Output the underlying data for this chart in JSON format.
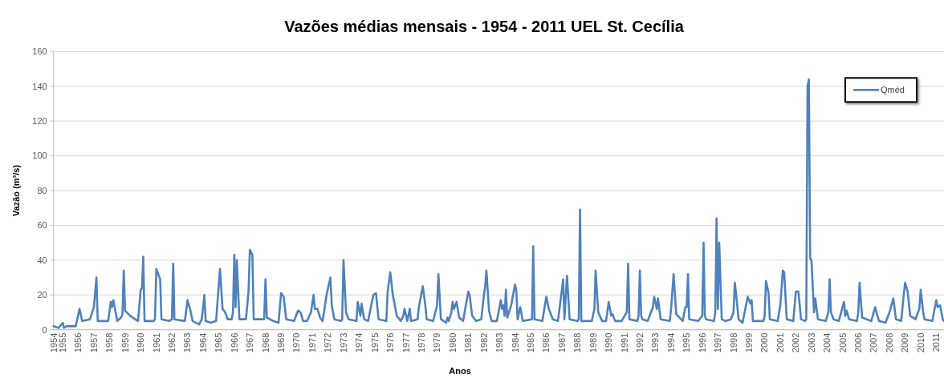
{
  "chart_data": {
    "type": "line",
    "title": "Vazões médias mensais - 1954 - 2011 UEL St. Cecília",
    "xlabel": "Anos",
    "ylabel": "Vazão (m³/s)",
    "x": [
      "1954-06",
      "1954-10",
      "1955-01",
      "1955-02",
      "1955-04",
      "1955-11",
      "1956-02",
      "1956-04",
      "1956-10",
      "1957-01",
      "1957-03",
      "1957-04",
      "1957-12",
      "1958-02",
      "1958-03",
      "1958-04",
      "1958-07",
      "1958-10",
      "1958-11",
      "1958-12",
      "1959-01",
      "1959-05",
      "1959-11",
      "1960-01",
      "1960-02",
      "1960-03",
      "1960-04",
      "1960-11",
      "1960-12",
      "1961-01",
      "1961-04",
      "1961-05",
      "1961-11",
      "1962-01",
      "1962-02",
      "1962-03",
      "1962-11",
      "1963-01",
      "1963-03",
      "1963-05",
      "1963-10",
      "1963-12",
      "1964-02",
      "1964-03",
      "1964-07",
      "1964-11",
      "1965-02",
      "1965-04",
      "1965-06",
      "1965-08",
      "1965-11",
      "1965-12",
      "1966-01",
      "1966-02",
      "1966-03",
      "1966-05",
      "1966-10",
      "1966-12",
      "1967-01",
      "1967-03",
      "1967-04",
      "1967-11",
      "1967-12",
      "1968-01",
      "1968-02",
      "1968-07",
      "1968-11",
      "1969-01",
      "1969-03",
      "1969-05",
      "1969-11",
      "1970-02",
      "1970-04",
      "1970-06",
      "1970-09",
      "1970-12",
      "1971-02",
      "1971-03",
      "1971-05",
      "1971-07",
      "1971-09",
      "1971-12",
      "1972-03",
      "1972-04",
      "1972-06",
      "1972-11",
      "1972-12",
      "1973-01",
      "1973-03",
      "1973-05",
      "1973-11",
      "1973-12",
      "1974-02",
      "1974-03",
      "1974-05",
      "1974-08",
      "1974-12",
      "1975-02",
      "1975-04",
      "1975-10",
      "1975-11",
      "1976-01",
      "1976-03",
      "1976-06",
      "1976-09",
      "1976-11",
      "1976-12",
      "1977-02",
      "1977-04",
      "1977-05",
      "1977-10",
      "1977-11",
      "1978-02",
      "1978-04",
      "1978-05",
      "1978-10",
      "1979-01",
      "1979-02",
      "1979-04",
      "1979-08",
      "1979-09",
      "1979-10",
      "1979-12",
      "1980-01",
      "1980-02",
      "1980-04",
      "1980-06",
      "1980-09",
      "1981-01",
      "1981-02",
      "1981-04",
      "1981-07",
      "1981-11",
      "1982-01",
      "1982-02",
      "1982-03",
      "1982-05",
      "1982-07",
      "1982-11",
      "1983-02",
      "1983-03",
      "1983-04",
      "1983-05",
      "1983-06",
      "1983-07",
      "1983-10",
      "1984-01",
      "1984-02",
      "1984-03",
      "1984-05",
      "1984-07",
      "1985-02",
      "1985-03",
      "1985-04",
      "1985-10",
      "1986-01",
      "1986-03",
      "1986-06",
      "1986-10",
      "1987-02",
      "1987-03",
      "1987-05",
      "1987-07",
      "1988-01",
      "1988-02",
      "1988-03",
      "1988-04",
      "1988-12",
      "1989-02",
      "1989-03",
      "1989-05",
      "1989-08",
      "1989-11",
      "1990-01",
      "1990-03",
      "1990-04",
      "1990-06",
      "1990-11",
      "1991-02",
      "1991-03",
      "1991-04",
      "1991-05",
      "1991-11",
      "1991-12",
      "1992-01",
      "1992-02",
      "1992-03",
      "1992-07",
      "1992-11",
      "1992-12",
      "1993-02",
      "1993-03",
      "1993-05",
      "1993-12",
      "1994-01",
      "1994-03",
      "1994-05",
      "1994-10",
      "1994-12",
      "1995-01",
      "1995-02",
      "1995-03",
      "1995-10",
      "1996-01",
      "1996-02",
      "1996-03",
      "1996-04",
      "1996-10",
      "1996-11",
      "1996-12",
      "1997-01",
      "1997-02",
      "1997-04",
      "1997-07",
      "1997-11",
      "1998-01",
      "1998-02",
      "1998-03",
      "1998-05",
      "1998-08",
      "1998-12",
      "1999-02",
      "1999-03",
      "1999-04",
      "1999-12",
      "2000-01",
      "2000-02",
      "2000-04",
      "2000-05",
      "2000-11",
      "2001-01",
      "2001-03",
      "2001-04",
      "2001-06",
      "2001-11",
      "2002-01",
      "2002-03",
      "2002-05",
      "2002-08",
      "2002-09",
      "2002-10",
      "2002-11",
      "2002-12",
      "2003-01",
      "2003-03",
      "2003-04",
      "2003-06",
      "2003-12",
      "2004-02",
      "2004-03",
      "2004-04",
      "2004-06",
      "2004-10",
      "2005-02",
      "2005-03",
      "2005-04",
      "2005-06",
      "2005-12",
      "2006-01",
      "2006-02",
      "2006-04",
      "2006-11",
      "2007-02",
      "2007-03",
      "2007-05",
      "2007-10",
      "2008-01",
      "2008-04",
      "2008-06",
      "2008-10",
      "2008-12",
      "2009-01",
      "2009-03",
      "2009-05",
      "2009-09",
      "2009-12",
      "2010-01",
      "2010-03",
      "2010-04",
      "2010-10",
      "2011-01",
      "2011-02",
      "2011-04",
      "2011-06",
      "2011-07"
    ],
    "series": [
      {
        "name": "Qméd",
        "color": "#4f81bd",
        "values": [
          2,
          1,
          4,
          1,
          2,
          2,
          12,
          5,
          6,
          13,
          30,
          5,
          5,
          16,
          13,
          17,
          5,
          7,
          9,
          34,
          11,
          8,
          5,
          23,
          24,
          42,
          5,
          5,
          6,
          35,
          29,
          6,
          5,
          6,
          38,
          6,
          5,
          17,
          12,
          5,
          3,
          6,
          20,
          5,
          4,
          5,
          35,
          12,
          10,
          6,
          6,
          10,
          43,
          13,
          40,
          6,
          6,
          22,
          46,
          43,
          6,
          6,
          6,
          29,
          7,
          5,
          4,
          21,
          19,
          6,
          5,
          11,
          10,
          5,
          5,
          10,
          20,
          12,
          12,
          7,
          5,
          20,
          30,
          14,
          6,
          5,
          6,
          40,
          10,
          6,
          5,
          16,
          8,
          15,
          6,
          5,
          20,
          21,
          6,
          5,
          22,
          33,
          20,
          8,
          5,
          8,
          12,
          5,
          12,
          5,
          6,
          13,
          25,
          14,
          6,
          5,
          14,
          32,
          6,
          4,
          7,
          5,
          10,
          16,
          12,
          16,
          7,
          5,
          22,
          20,
          8,
          5,
          6,
          20,
          25,
          34,
          11,
          5,
          5,
          17,
          12,
          14,
          8,
          23,
          7,
          14,
          26,
          22,
          6,
          13,
          5,
          6,
          48,
          6,
          5,
          19,
          12,
          6,
          5,
          29,
          6,
          31,
          6,
          5,
          6,
          69,
          5,
          5,
          12,
          34,
          10,
          5,
          5,
          16,
          8,
          9,
          5,
          5,
          9,
          10,
          38,
          6,
          5,
          8,
          34,
          8,
          6,
          5,
          13,
          19,
          12,
          18,
          6,
          5,
          12,
          32,
          9,
          5,
          13,
          13,
          32,
          6,
          5,
          8,
          50,
          8,
          6,
          5,
          10,
          64,
          12,
          50,
          6,
          5,
          6,
          10,
          27,
          21,
          6,
          4,
          19,
          15,
          17,
          5,
          5,
          8,
          28,
          21,
          6,
          5,
          14,
          34,
          33,
          6,
          5,
          22,
          22,
          6,
          5,
          6,
          140,
          144,
          41,
          40,
          10,
          18,
          6,
          5,
          10,
          29,
          10,
          6,
          5,
          16,
          8,
          11,
          6,
          5,
          10,
          27,
          7,
          5,
          13,
          10,
          5,
          4,
          10,
          18,
          6,
          5,
          20,
          27,
          22,
          8,
          6,
          12,
          23,
          10,
          6,
          5,
          17,
          13,
          14,
          6,
          5
        ]
      }
    ],
    "xlim": [
      "1954-06",
      "2011-07"
    ],
    "xticks": [
      {
        "value": "1954-06",
        "label": "1954"
      },
      "1955",
      "1956",
      "1957",
      "1958",
      "1959",
      "1960",
      "1961",
      "1962",
      "1963",
      "1964",
      "1965",
      "1966",
      "1967",
      "1968",
      "1969",
      "1970",
      "1971",
      "1972",
      "1973",
      "1974",
      "1975",
      "1976",
      "1977",
      "1978",
      "1979",
      "1980",
      "1981",
      "1982",
      "1983",
      "1984",
      "1985",
      "1986",
      "1987",
      "1988",
      "1989",
      "1990",
      "1991",
      "1992",
      "1993",
      "1994",
      "1995",
      "1996",
      "1997",
      "1998",
      "1999",
      "2000",
      "2001",
      "2002",
      "2003",
      "2004",
      "2005",
      "2006",
      "2007",
      "2008",
      "2009",
      "2010",
      "2011"
    ],
    "ylim": [
      0,
      160
    ],
    "yticks": [
      0,
      20,
      40,
      60,
      80,
      100,
      120,
      140,
      160
    ],
    "grid": "y",
    "legend": "top right"
  }
}
